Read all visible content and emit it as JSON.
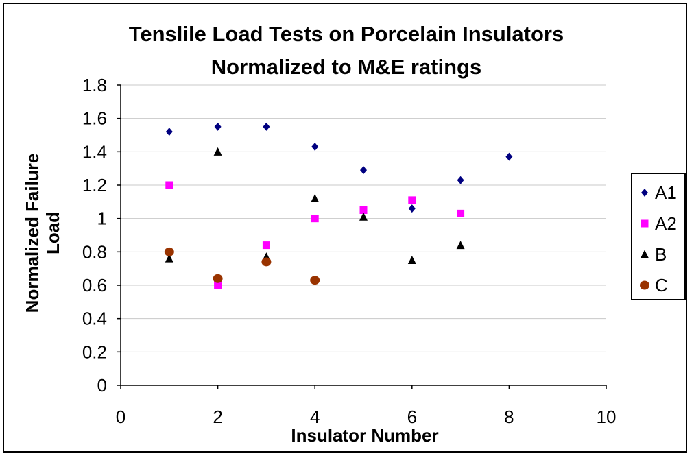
{
  "chart_data": {
    "type": "scatter",
    "title": [
      "Tenslile Load Tests on Porcelain Insulators",
      "Normalized to M&E ratings"
    ],
    "xlabel": "Insulator Number",
    "ylabel": [
      "Normalized Failure",
      "Load"
    ],
    "xlim": [
      0,
      10
    ],
    "ylim": [
      0,
      1.8
    ],
    "xticks": [
      "0",
      "2",
      "4",
      "6",
      "8",
      "10"
    ],
    "yticks": [
      "0",
      "0.2",
      "0.4",
      "0.6",
      "0.8",
      "1",
      "1.2",
      "1.4",
      "1.6",
      "1.8"
    ],
    "grid": "horizontal",
    "legend_position": "right",
    "series": [
      {
        "name": "A1",
        "marker": "diamond",
        "color": "#000080",
        "x": [
          1,
          2,
          3,
          4,
          5,
          6,
          7,
          8
        ],
        "y": [
          1.52,
          1.55,
          1.55,
          1.43,
          1.29,
          1.06,
          1.23,
          1.37
        ]
      },
      {
        "name": "A2",
        "marker": "square",
        "color": "#FF00FF",
        "x": [
          1,
          2,
          3,
          4,
          5,
          6,
          7
        ],
        "y": [
          1.2,
          0.6,
          0.84,
          1.0,
          1.05,
          1.11,
          1.03
        ]
      },
      {
        "name": "B",
        "marker": "triangle",
        "color": "#000000",
        "x": [
          1,
          2,
          3,
          4,
          5,
          6,
          7
        ],
        "y": [
          0.76,
          1.4,
          0.77,
          1.12,
          1.01,
          0.75,
          0.84
        ]
      },
      {
        "name": "C",
        "marker": "circle",
        "color": "#993300",
        "x": [
          1,
          2,
          3,
          4
        ],
        "y": [
          0.8,
          0.64,
          0.74,
          0.63
        ]
      }
    ]
  }
}
